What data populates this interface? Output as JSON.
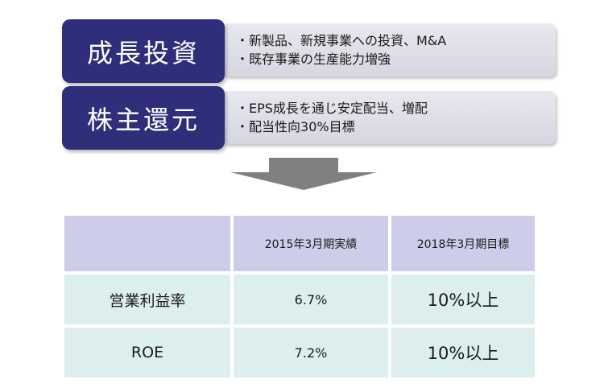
{
  "policies": [
    {
      "label": "成長投資",
      "items": [
        "新製品、新規事業への投資、M&A",
        "既存事業の生産能力増強"
      ]
    },
    {
      "label": "株主還元",
      "items": [
        "EPS成長を通じ安定配当、増配",
        "配当性向30%目標"
      ]
    }
  ],
  "table": {
    "headers": [
      "",
      "2015年3月期実績",
      "2018年3月期目標"
    ],
    "rows": [
      {
        "label": "営業利益率",
        "actual": "6.7%",
        "target": "10%以上"
      },
      {
        "label": "ROE",
        "actual": "7.2%",
        "target": "10%以上"
      }
    ]
  },
  "colors": {
    "label_bg": "#2e2e7a",
    "panel_bg": "#e0e0ea",
    "header_bg": "#cdcdea",
    "cell_bg": "#dcefee",
    "arrow": "#808080"
  }
}
